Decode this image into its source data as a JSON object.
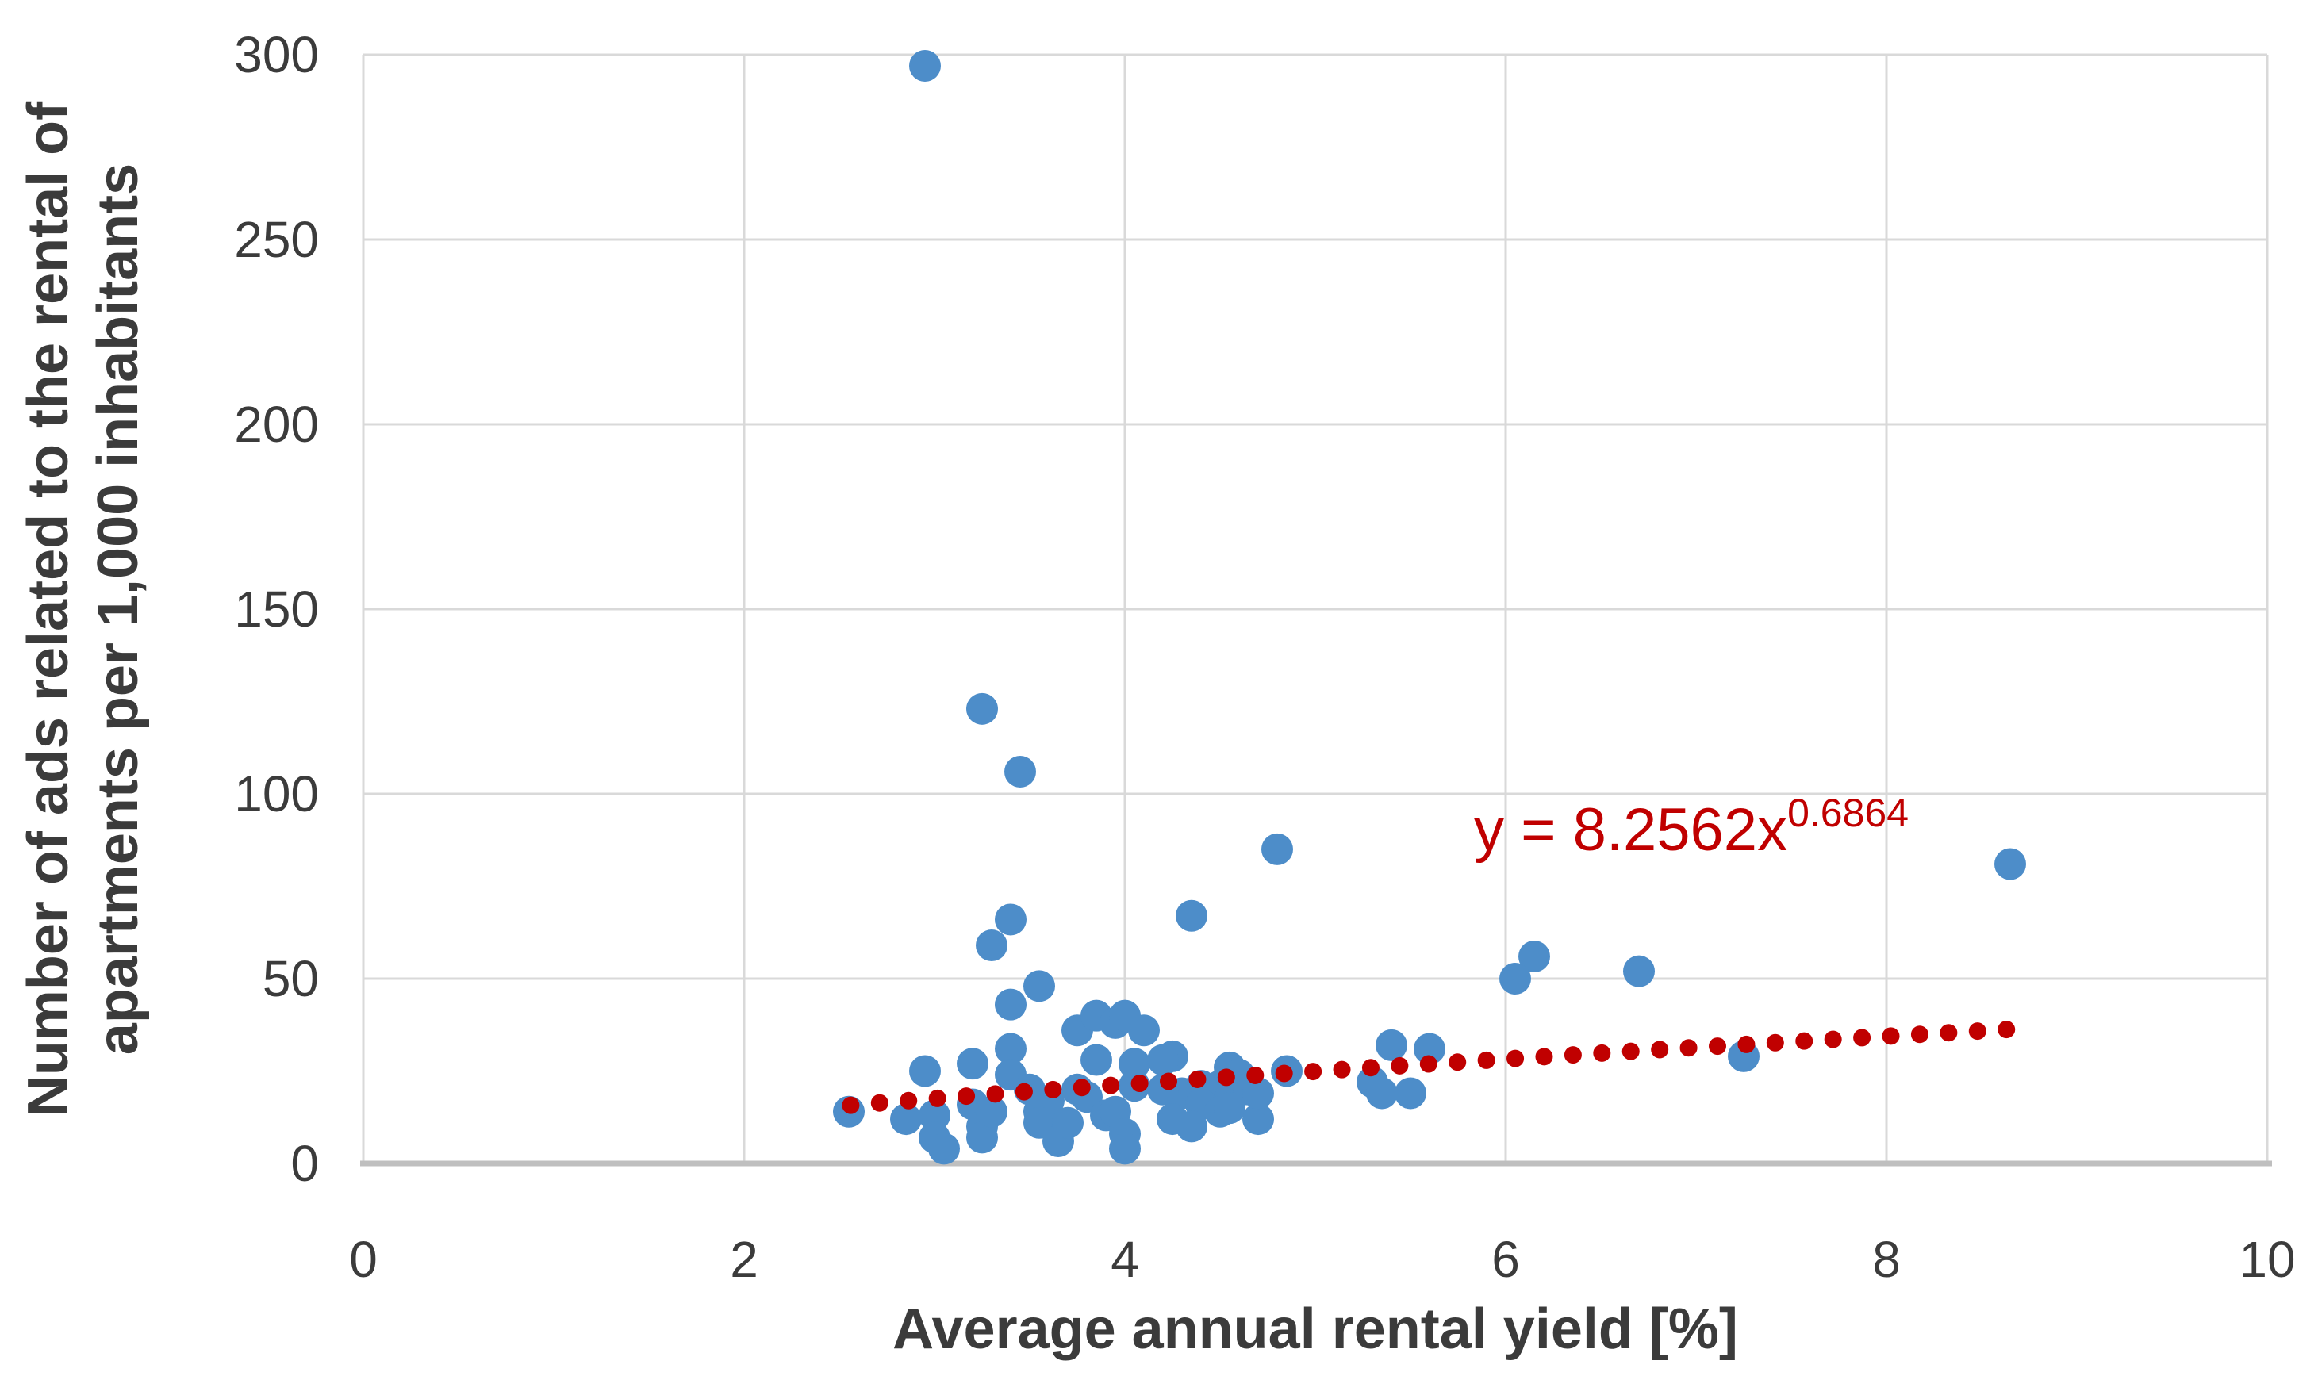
{
  "chart_data": {
    "type": "scatter",
    "title": "",
    "xlabel": "Average annual rental yield [%]",
    "ylabel_line1": "Number of ads related to the rental of",
    "ylabel_line2": "apartments per 1,000 inhabitants",
    "xlim": [
      0,
      10
    ],
    "ylim": [
      0,
      300
    ],
    "x_ticks": [
      0,
      2,
      4,
      6,
      8,
      10
    ],
    "y_ticks": [
      0,
      50,
      100,
      150,
      200,
      250,
      300
    ],
    "grid": true,
    "legend": "none",
    "points": [
      [
        2.95,
        297
      ],
      [
        3.25,
        123
      ],
      [
        3.45,
        106
      ],
      [
        4.8,
        85
      ],
      [
        8.65,
        81
      ],
      [
        4.35,
        67
      ],
      [
        3.4,
        66
      ],
      [
        3.3,
        59
      ],
      [
        6.15,
        56
      ],
      [
        6.7,
        52
      ],
      [
        6.05,
        50
      ],
      [
        3.55,
        48
      ],
      [
        3.4,
        43
      ],
      [
        7.25,
        29
      ],
      [
        3.4,
        31
      ],
      [
        3.75,
        36
      ],
      [
        3.85,
        40
      ],
      [
        3.95,
        38
      ],
      [
        4.0,
        40
      ],
      [
        4.1,
        36
      ],
      [
        3.85,
        28
      ],
      [
        4.05,
        27
      ],
      [
        4.25,
        29
      ],
      [
        4.2,
        28
      ],
      [
        5.4,
        32
      ],
      [
        5.6,
        31
      ],
      [
        2.95,
        25
      ],
      [
        3.2,
        27
      ],
      [
        3.4,
        24
      ],
      [
        4.55,
        26
      ],
      [
        4.85,
        25
      ],
      [
        4.6,
        24
      ],
      [
        5.3,
        22
      ],
      [
        4.5,
        21
      ],
      [
        4.4,
        21
      ],
      [
        4.05,
        21
      ],
      [
        4.65,
        20
      ],
      [
        3.5,
        20
      ],
      [
        3.75,
        20
      ],
      [
        5.35,
        19
      ],
      [
        5.5,
        19
      ],
      [
        4.3,
        19
      ],
      [
        4.2,
        20
      ],
      [
        3.8,
        18
      ],
      [
        4.4,
        16
      ],
      [
        3.6,
        17
      ],
      [
        3.2,
        16
      ],
      [
        2.55,
        14
      ],
      [
        2.85,
        12
      ],
      [
        3.0,
        13
      ],
      [
        3.0,
        7
      ],
      [
        3.05,
        4
      ],
      [
        3.25,
        10
      ],
      [
        3.25,
        7
      ],
      [
        3.3,
        14
      ],
      [
        3.55,
        14
      ],
      [
        3.55,
        11
      ],
      [
        3.65,
        6
      ],
      [
        3.7,
        11
      ],
      [
        3.9,
        13
      ],
      [
        3.95,
        14
      ],
      [
        4.0,
        8
      ],
      [
        4.0,
        4
      ],
      [
        4.25,
        12
      ],
      [
        4.35,
        10
      ],
      [
        4.5,
        14
      ],
      [
        4.55,
        15
      ],
      [
        4.7,
        12
      ],
      [
        4.7,
        19
      ]
    ],
    "trendline": {
      "type": "power",
      "coefficient": 8.2562,
      "exponent": 0.6864,
      "x_start": 2.56,
      "x_end": 8.63,
      "dot_count": 41,
      "equation_main": "y = 8.2562x",
      "equation_sup": "0.6864",
      "equation_full": "y = 8.2562x^0.6864"
    },
    "colors": {
      "marker": "#4d8dc9",
      "trend": "#c00000",
      "equation_text": "#c00000",
      "gridline": "#d9d9d9",
      "axis_line": "#bfbfbf",
      "text": "#3b3b3b",
      "background": "#ffffff"
    }
  }
}
